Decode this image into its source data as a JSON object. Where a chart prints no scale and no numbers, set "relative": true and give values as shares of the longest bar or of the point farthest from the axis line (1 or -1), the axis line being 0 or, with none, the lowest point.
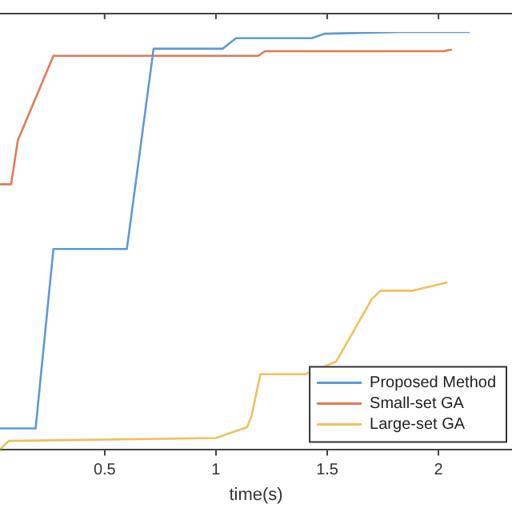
{
  "chart_data": {
    "type": "line",
    "xlabel": "time(s)",
    "relative": true,
    "xlim": [
      0.03,
      2.33
    ],
    "xticks": [
      0.5,
      1,
      1.5,
      2
    ],
    "grid": false,
    "legend": "bottom right",
    "marker": "none",
    "line_style": "solid",
    "series": [
      {
        "name": "Proposed Method",
        "color": "#5b9bd5",
        "x": [
          0.03,
          0.19,
          0.27,
          0.6,
          0.72,
          1.03,
          1.09,
          1.43,
          1.49,
          1.83,
          2.14
        ],
        "values": [
          0.05,
          0.05,
          0.48,
          0.48,
          0.96,
          0.96,
          0.985,
          0.985,
          0.996,
          1,
          1
        ]
      },
      {
        "name": "Small-set GA",
        "color": "#e07b54",
        "x": [
          0.03,
          0.08,
          0.11,
          0.27,
          1.19,
          1.22,
          2.02,
          2.06
        ],
        "values": [
          0.635,
          0.635,
          0.74,
          0.943,
          0.943,
          0.954,
          0.954,
          0.958
        ]
      },
      {
        "name": "Large-set GA",
        "color": "#f0c05a",
        "x": [
          0.03,
          0.07,
          1.0,
          1.14,
          1.16,
          1.2,
          1.4,
          1.54,
          1.7,
          1.74,
          1.88,
          2.04
        ],
        "values": [
          0,
          0.02,
          0.027,
          0.053,
          0.08,
          0.18,
          0.18,
          0.21,
          0.36,
          0.38,
          0.38,
          0.4
        ]
      }
    ]
  }
}
